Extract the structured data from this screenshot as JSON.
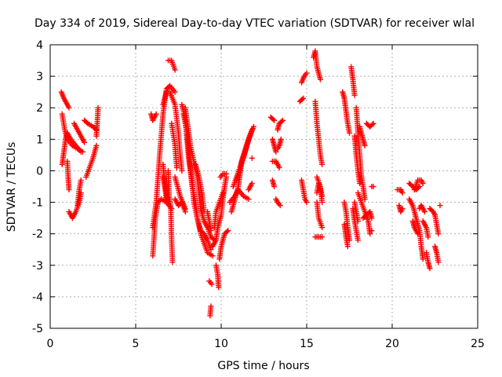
{
  "chart_data": {
    "type": "scatter",
    "title": "Day 334 of 2019, Sidereal Day-to-day VTEC variation (SDTVAR) for receiver wlal",
    "xlabel": "GPS time / hours",
    "ylabel": "SDTVAR / TECUs",
    "xlim": [
      0,
      25
    ],
    "ylim": [
      -5,
      4
    ],
    "grid": true,
    "marker": "+",
    "color": "#ff0000",
    "x_ticks": [
      0,
      5,
      10,
      15,
      20,
      25
    ],
    "x_tick_labels": [
      "0",
      "5",
      "10",
      "15",
      "20",
      "25"
    ],
    "y_ticks": [
      -5,
      -4,
      -3,
      -2,
      -1,
      0,
      1,
      2,
      3,
      4
    ],
    "y_tick_labels": [
      "-5",
      "-4",
      "-3",
      "-2",
      "-1",
      "0",
      "1",
      "2",
      "3",
      "4"
    ],
    "segments": [
      [
        [
          0.65,
          2.5
        ],
        [
          0.8,
          2.3
        ],
        [
          1.0,
          2.1
        ],
        [
          1.1,
          2.0
        ]
      ],
      [
        [
          0.7,
          1.8
        ],
        [
          0.85,
          1.3
        ],
        [
          1.0,
          1.0
        ],
        [
          1.3,
          0.8
        ],
        [
          1.6,
          0.7
        ],
        [
          1.9,
          0.6
        ]
      ],
      [
        [
          0.7,
          0.2
        ],
        [
          0.8,
          0.6
        ],
        [
          0.9,
          1.0
        ],
        [
          1.0,
          1.2
        ],
        [
          1.2,
          1.0
        ],
        [
          1.5,
          0.8
        ],
        [
          1.8,
          0.6
        ]
      ],
      [
        [
          1.0,
          0.3
        ],
        [
          1.05,
          -0.2
        ],
        [
          1.1,
          -0.6
        ]
      ],
      [
        [
          1.1,
          -1.3
        ],
        [
          1.3,
          -1.5
        ],
        [
          1.5,
          -1.3
        ],
        [
          1.7,
          -1.0
        ],
        [
          1.8,
          -0.7
        ]
      ],
      [
        [
          1.6,
          -1.1
        ],
        [
          1.7,
          -0.6
        ],
        [
          1.8,
          -0.3
        ]
      ],
      [
        [
          1.4,
          1.5
        ],
        [
          1.6,
          1.3
        ],
        [
          1.8,
          1.1
        ],
        [
          2.0,
          0.9
        ]
      ],
      [
        [
          2.0,
          1.6
        ],
        [
          2.2,
          1.5
        ],
        [
          2.5,
          1.4
        ],
        [
          2.7,
          1.3
        ]
      ],
      [
        [
          2.1,
          -0.2
        ],
        [
          2.3,
          0.1
        ],
        [
          2.5,
          0.4
        ],
        [
          2.7,
          0.8
        ]
      ],
      [
        [
          2.7,
          1.1
        ],
        [
          2.75,
          1.5
        ],
        [
          2.8,
          2.0
        ]
      ],
      [
        [
          5.9,
          1.8
        ],
        [
          6.0,
          1.6
        ],
        [
          6.2,
          1.8
        ]
      ],
      [
        [
          6.0,
          -1.8
        ],
        [
          6.2,
          -1.0
        ],
        [
          6.4,
          0.5
        ],
        [
          6.6,
          1.8
        ],
        [
          6.8,
          2.6
        ],
        [
          7.0,
          2.7
        ],
        [
          7.3,
          2.5
        ]
      ],
      [
        [
          6.0,
          -2.7
        ],
        [
          6.15,
          -1.5
        ],
        [
          6.3,
          -1.0
        ],
        [
          6.5,
          -0.9
        ],
        [
          6.8,
          -1.0
        ],
        [
          7.1,
          -1.2
        ]
      ],
      [
        [
          6.6,
          -0.2
        ],
        [
          6.7,
          -0.5
        ],
        [
          6.8,
          -0.9
        ]
      ],
      [
        [
          6.6,
          2.1
        ],
        [
          6.8,
          2.5
        ],
        [
          7.0,
          2.5
        ],
        [
          7.3,
          2.1
        ],
        [
          7.5,
          1.2
        ],
        [
          7.6,
          0.5
        ],
        [
          7.7,
          0.0
        ]
      ],
      [
        [
          6.9,
          0.0
        ],
        [
          6.95,
          -0.8
        ],
        [
          7.05,
          -1.2
        ],
        [
          7.1,
          -2.2
        ],
        [
          7.15,
          -2.9
        ]
      ],
      [
        [
          6.6,
          0.2
        ],
        [
          6.65,
          -0.1
        ],
        [
          6.7,
          -0.4
        ],
        [
          6.8,
          -0.7
        ],
        [
          6.85,
          -1.0
        ]
      ],
      [
        [
          6.9,
          3.5
        ],
        [
          7.1,
          3.5
        ],
        [
          7.3,
          3.2
        ]
      ],
      [
        [
          7.1,
          1.5
        ],
        [
          7.3,
          0.8
        ],
        [
          7.4,
          0.1
        ]
      ],
      [
        [
          7.3,
          -0.9
        ],
        [
          7.5,
          -1.1
        ],
        [
          7.7,
          -1.0
        ],
        [
          7.9,
          -1.3
        ]
      ],
      [
        [
          7.3,
          -0.2
        ],
        [
          7.6,
          -0.8
        ],
        [
          7.9,
          -1.2
        ]
      ],
      [
        [
          7.7,
          2.1
        ],
        [
          7.9,
          1.7
        ],
        [
          8.0,
          1.0
        ],
        [
          8.1,
          0.4
        ],
        [
          8.3,
          -0.3
        ],
        [
          8.4,
          -1.0
        ],
        [
          8.6,
          -1.5
        ],
        [
          8.8,
          -2.0
        ],
        [
          9.0,
          -2.3
        ],
        [
          9.2,
          -2.6
        ],
        [
          9.5,
          -2.7
        ]
      ],
      [
        [
          7.8,
          1.8
        ],
        [
          8.0,
          1.2
        ],
        [
          8.1,
          0.6
        ],
        [
          8.2,
          0.0
        ],
        [
          8.3,
          -0.5
        ],
        [
          8.5,
          -1.0
        ],
        [
          8.6,
          -1.5
        ],
        [
          8.8,
          -1.9
        ],
        [
          9.0,
          -2.0
        ],
        [
          9.2,
          -2.2
        ],
        [
          9.4,
          -2.5
        ]
      ],
      [
        [
          7.9,
          2.0
        ],
        [
          8.05,
          1.4
        ],
        [
          8.2,
          0.8
        ],
        [
          8.4,
          0.3
        ],
        [
          8.6,
          -0.2
        ],
        [
          8.7,
          -0.7
        ],
        [
          8.8,
          -1.2
        ],
        [
          9.0,
          -1.6
        ],
        [
          9.2,
          -1.8
        ],
        [
          9.4,
          -2.1
        ],
        [
          9.6,
          -2.2
        ]
      ],
      [
        [
          8.5,
          0.2
        ],
        [
          8.7,
          -0.2
        ],
        [
          8.9,
          -0.8
        ],
        [
          9.0,
          -1.3
        ]
      ],
      [
        [
          9.2,
          -1.3
        ],
        [
          9.3,
          -1.6
        ],
        [
          9.4,
          -1.9
        ]
      ],
      [
        [
          9.35,
          -4.6
        ],
        [
          9.4,
          -4.3
        ]
      ],
      [
        [
          9.3,
          -3.5
        ],
        [
          9.45,
          -3.6
        ]
      ],
      [
        [
          9.7,
          -3.0
        ],
        [
          9.8,
          -3.3
        ],
        [
          9.85,
          -3.7
        ]
      ],
      [
        [
          9.5,
          -2.4
        ],
        [
          9.7,
          -2.2
        ],
        [
          9.8,
          -1.8
        ],
        [
          10.0,
          -1.4
        ],
        [
          10.1,
          -0.9
        ],
        [
          10.2,
          -0.5
        ],
        [
          10.3,
          -0.2
        ]
      ],
      [
        [
          9.6,
          -1.8
        ],
        [
          9.7,
          -1.3
        ],
        [
          9.9,
          -1.0
        ],
        [
          10.1,
          -0.7
        ]
      ],
      [
        [
          9.9,
          -2.8
        ],
        [
          10.0,
          -2.4
        ],
        [
          10.2,
          -2.0
        ],
        [
          10.4,
          -1.9
        ]
      ],
      [
        [
          9.95,
          -0.2
        ],
        [
          10.1,
          -0.1
        ],
        [
          10.3,
          -0.1
        ]
      ],
      [
        [
          10.5,
          -1.0
        ],
        [
          10.8,
          -0.8
        ],
        [
          11.0,
          -0.6
        ],
        [
          11.3,
          -0.8
        ],
        [
          11.6,
          -0.9
        ]
      ],
      [
        [
          10.6,
          -1.3
        ],
        [
          10.8,
          -0.9
        ],
        [
          11.0,
          -0.5
        ],
        [
          11.1,
          -0.1
        ],
        [
          11.2,
          0.3
        ],
        [
          11.4,
          0.6
        ],
        [
          11.6,
          1.0
        ],
        [
          11.8,
          1.3
        ]
      ],
      [
        [
          10.7,
          -0.5
        ],
        [
          10.9,
          -0.2
        ],
        [
          11.1,
          0.1
        ],
        [
          11.3,
          0.4
        ],
        [
          11.5,
          0.8
        ],
        [
          11.8,
          1.3
        ]
      ],
      [
        [
          10.9,
          -0.3
        ],
        [
          11.1,
          0.1
        ],
        [
          11.3,
          0.5
        ],
        [
          11.6,
          1.0
        ],
        [
          11.9,
          1.4
        ]
      ],
      [
        [
          11.6,
          -0.6
        ],
        [
          11.8,
          -0.4
        ]
      ],
      [
        [
          11.8,
          0.4
        ]
      ],
      [
        [
          12.9,
          1.7
        ],
        [
          13.1,
          1.6
        ]
      ],
      [
        [
          13.0,
          1.0
        ],
        [
          13.1,
          0.8
        ],
        [
          13.2,
          0.6
        ]
      ],
      [
        [
          13.0,
          0.3
        ],
        [
          13.2,
          0.3
        ],
        [
          13.4,
          0.1
        ]
      ],
      [
        [
          13.0,
          -0.3
        ],
        [
          13.1,
          -0.5
        ]
      ],
      [
        [
          13.3,
          1.3
        ],
        [
          13.4,
          1.5
        ],
        [
          13.6,
          1.6
        ]
      ],
      [
        [
          13.3,
          0.7
        ],
        [
          13.4,
          0.8
        ],
        [
          13.5,
          1.0
        ]
      ],
      [
        [
          13.2,
          -0.9
        ],
        [
          13.3,
          -1.0
        ],
        [
          13.45,
          -1.1
        ]
      ],
      [
        [
          14.6,
          2.2
        ],
        [
          14.8,
          2.3
        ]
      ],
      [
        [
          14.7,
          2.8
        ],
        [
          14.85,
          3.0
        ],
        [
          15.0,
          3.1
        ]
      ],
      [
        [
          14.7,
          -0.3
        ],
        [
          14.8,
          -0.6
        ],
        [
          14.9,
          -0.9
        ],
        [
          15.0,
          -1.0
        ]
      ],
      [
        [
          15.4,
          3.6
        ],
        [
          15.5,
          3.8
        ],
        [
          15.6,
          3.3
        ],
        [
          15.8,
          2.9
        ]
      ],
      [
        [
          15.5,
          2.2
        ],
        [
          15.6,
          1.5
        ],
        [
          15.7,
          1.0
        ],
        [
          15.8,
          0.5
        ],
        [
          15.9,
          0.2
        ]
      ],
      [
        [
          15.5,
          -2.1
        ],
        [
          15.7,
          -2.1
        ],
        [
          15.9,
          -2.1
        ]
      ],
      [
        [
          15.6,
          -1.0
        ],
        [
          15.7,
          -1.5
        ],
        [
          15.9,
          -1.8
        ]
      ],
      [
        [
          15.6,
          -0.7
        ],
        [
          15.7,
          -0.4
        ],
        [
          15.8,
          -0.6
        ],
        [
          15.9,
          -0.8
        ]
      ],
      [
        [
          15.6,
          -0.2
        ],
        [
          15.8,
          -0.5
        ],
        [
          15.9,
          -1.0
        ]
      ],
      [
        [
          17.1,
          2.5
        ],
        [
          17.2,
          2.3
        ],
        [
          17.3,
          1.9
        ],
        [
          17.4,
          1.5
        ],
        [
          17.5,
          1.2
        ]
      ],
      [
        [
          17.2,
          -1.0
        ],
        [
          17.3,
          -1.3
        ],
        [
          17.4,
          -1.8
        ],
        [
          17.5,
          -2.2
        ]
      ],
      [
        [
          17.2,
          -1.7
        ],
        [
          17.3,
          -2.1
        ],
        [
          17.4,
          -2.4
        ]
      ],
      [
        [
          17.6,
          3.3
        ],
        [
          17.7,
          2.9
        ],
        [
          17.8,
          2.4
        ]
      ],
      [
        [
          17.7,
          -1.2
        ],
        [
          17.8,
          -1.6
        ],
        [
          17.9,
          -1.9
        ],
        [
          18.0,
          -2.2
        ]
      ],
      [
        [
          17.8,
          1.1
        ],
        [
          17.9,
          0.5
        ],
        [
          18.0,
          0.0
        ],
        [
          18.1,
          -0.4
        ]
      ],
      [
        [
          17.8,
          -1.0
        ],
        [
          17.9,
          -1.3
        ],
        [
          18.0,
          -1.6
        ]
      ],
      [
        [
          17.9,
          2.0
        ],
        [
          18.0,
          1.2
        ],
        [
          18.1,
          0.5
        ],
        [
          18.2,
          -0.2
        ]
      ],
      [
        [
          18.0,
          -0.7
        ],
        [
          18.2,
          -1.0
        ],
        [
          18.4,
          -1.3
        ],
        [
          18.6,
          -1.6
        ],
        [
          18.7,
          -2.0
        ]
      ],
      [
        [
          18.1,
          1.4
        ],
        [
          18.3,
          1.0
        ],
        [
          18.4,
          0.8
        ]
      ],
      [
        [
          18.2,
          -0.2
        ],
        [
          18.3,
          -0.5
        ],
        [
          18.4,
          -0.9
        ]
      ],
      [
        [
          18.3,
          -1.5
        ],
        [
          18.5,
          -1.4
        ],
        [
          18.7,
          -1.3
        ],
        [
          18.8,
          -1.5
        ]
      ],
      [
        [
          18.5,
          1.5
        ],
        [
          18.7,
          1.4
        ],
        [
          18.9,
          1.5
        ]
      ],
      [
        [
          18.8,
          -0.5
        ],
        [
          18.9,
          -0.5
        ]
      ],
      [
        [
          18.8,
          -1.9
        ]
      ],
      [
        [
          20.3,
          -0.6
        ],
        [
          20.5,
          -0.6
        ],
        [
          20.6,
          -0.7
        ]
      ],
      [
        [
          20.4,
          -1.1
        ],
        [
          20.5,
          -1.3
        ],
        [
          20.6,
          -1.2
        ]
      ],
      [
        [
          21.0,
          -0.4
        ],
        [
          21.2,
          -0.5
        ],
        [
          21.4,
          -0.6
        ],
        [
          21.6,
          -0.5
        ]
      ],
      [
        [
          21.0,
          -0.9
        ],
        [
          21.2,
          -1.1
        ],
        [
          21.4,
          -1.5
        ],
        [
          21.6,
          -1.9
        ],
        [
          21.7,
          -2.4
        ],
        [
          21.8,
          -2.8
        ]
      ],
      [
        [
          21.2,
          -1.6
        ],
        [
          21.3,
          -1.8
        ],
        [
          21.5,
          -2.0
        ]
      ],
      [
        [
          21.3,
          -0.6
        ],
        [
          21.5,
          -0.3
        ],
        [
          21.7,
          -0.3
        ],
        [
          21.8,
          -0.4
        ]
      ],
      [
        [
          21.6,
          -1.2
        ],
        [
          21.7,
          -1.1
        ],
        [
          21.8,
          -1.2
        ],
        [
          21.9,
          -1.3
        ]
      ],
      [
        [
          21.8,
          -1.6
        ],
        [
          22.0,
          -1.8
        ],
        [
          22.1,
          -2.1
        ]
      ],
      [
        [
          22.0,
          -2.6
        ],
        [
          22.1,
          -2.9
        ],
        [
          22.2,
          -3.1
        ]
      ],
      [
        [
          22.2,
          -1.2
        ],
        [
          22.4,
          -1.3
        ],
        [
          22.5,
          -1.4
        ]
      ],
      [
        [
          22.5,
          -1.4
        ],
        [
          22.6,
          -1.7
        ],
        [
          22.7,
          -2.0
        ]
      ],
      [
        [
          22.5,
          -2.4
        ],
        [
          22.6,
          -2.6
        ],
        [
          22.7,
          -2.9
        ]
      ],
      [
        [
          22.8,
          -1.1
        ]
      ]
    ]
  }
}
